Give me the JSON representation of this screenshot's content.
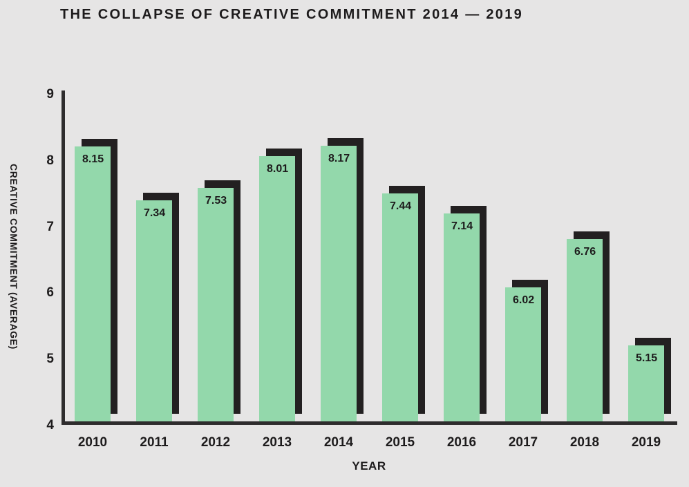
{
  "title": "THE COLLAPSE OF CREATIVE COMMITMENT 2014 — 2019",
  "chart_data": {
    "type": "bar",
    "title": "THE COLLAPSE OF CREATIVE COMMITMENT 2014 — 2019",
    "categories": [
      "2010",
      "2011",
      "2012",
      "2013",
      "2014",
      "2015",
      "2016",
      "2017",
      "2018",
      "2019"
    ],
    "values": [
      8.15,
      7.34,
      7.53,
      8.01,
      8.17,
      7.44,
      7.14,
      6.02,
      6.76,
      5.15
    ],
    "value_labels": [
      "8.15",
      "7.34",
      "7.53",
      "8.01",
      "8.17",
      "7.44",
      "7.14",
      "6.02",
      "6.76",
      "5.15"
    ],
    "xlabel": "YEAR",
    "ylabel": "CREATIVE COMMITMENT (AVERAGE)",
    "ylim": [
      4,
      9
    ],
    "yticks": [
      9,
      8,
      7,
      6,
      5,
      4
    ],
    "grid": false,
    "legend_position": "none",
    "colors": {
      "bar": "#93d8ab",
      "bar_shadow": "#232021",
      "background": "#e6e5e5",
      "text": "#1d1b1c",
      "axis": "#2e2c2d"
    }
  }
}
